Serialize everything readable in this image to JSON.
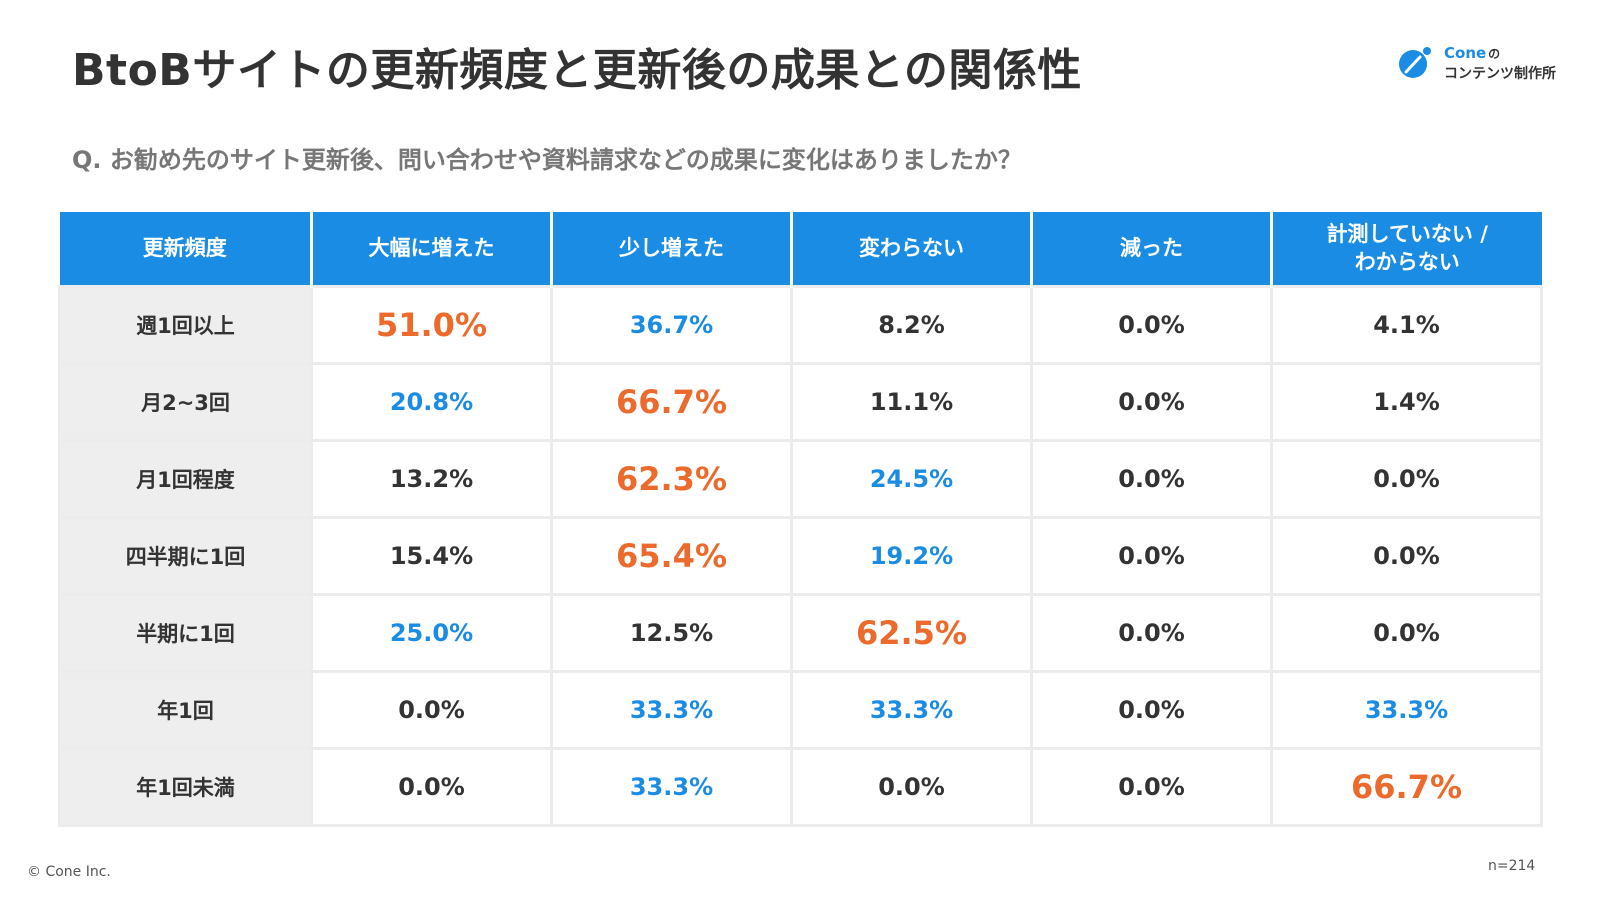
{
  "title": "BtoBサイトの更新頻度と更新後の成果との関係性",
  "logo": {
    "brand": "Cone",
    "particle": "の",
    "subtitle": "コンテンツ制作所"
  },
  "question": "Q. お勧め先のサイト更新後、問い合わせや資料請求などの成果に変化はありましたか？",
  "colors": {
    "header_bg": "#1A8CE3",
    "highlight_max": "#EB6A2C",
    "highlight_second": "#1A8CE3",
    "row_label_bg": "#EEEEEE"
  },
  "chart_data": {
    "type": "table",
    "columns": [
      "更新頻度",
      "大幅に増えた",
      "少し増えた",
      "変わらない",
      "減った",
      "計測していない /\nわからない"
    ],
    "rows": [
      {
        "label": "週1回以上",
        "values": [
          "51.0%",
          "36.7%",
          "8.2%",
          "0.0%",
          "4.1%"
        ],
        "highlight": [
          "max",
          "second",
          "none",
          "none",
          "none"
        ]
      },
      {
        "label": "月2~3回",
        "values": [
          "20.8%",
          "66.7%",
          "11.1%",
          "0.0%",
          "1.4%"
        ],
        "highlight": [
          "second",
          "max",
          "none",
          "none",
          "none"
        ]
      },
      {
        "label": "月1回程度",
        "values": [
          "13.2%",
          "62.3%",
          "24.5%",
          "0.0%",
          "0.0%"
        ],
        "highlight": [
          "none",
          "max",
          "second",
          "none",
          "none"
        ]
      },
      {
        "label": "四半期に1回",
        "values": [
          "15.4%",
          "65.4%",
          "19.2%",
          "0.0%",
          "0.0%"
        ],
        "highlight": [
          "none",
          "max",
          "second",
          "none",
          "none"
        ]
      },
      {
        "label": "半期に1回",
        "values": [
          "25.0%",
          "12.5%",
          "62.5%",
          "0.0%",
          "0.0%"
        ],
        "highlight": [
          "second",
          "none",
          "max",
          "none",
          "none"
        ]
      },
      {
        "label": "年1回",
        "values": [
          "0.0%",
          "33.3%",
          "33.3%",
          "0.0%",
          "33.3%"
        ],
        "highlight": [
          "none",
          "second",
          "second",
          "none",
          "second"
        ]
      },
      {
        "label": "年1回未満",
        "values": [
          "0.0%",
          "33.3%",
          "0.0%",
          "0.0%",
          "66.7%"
        ],
        "highlight": [
          "none",
          "second",
          "none",
          "none",
          "max"
        ]
      }
    ]
  },
  "footer": {
    "copyright": "© Cone Inc.",
    "sample_size": "n=214"
  }
}
